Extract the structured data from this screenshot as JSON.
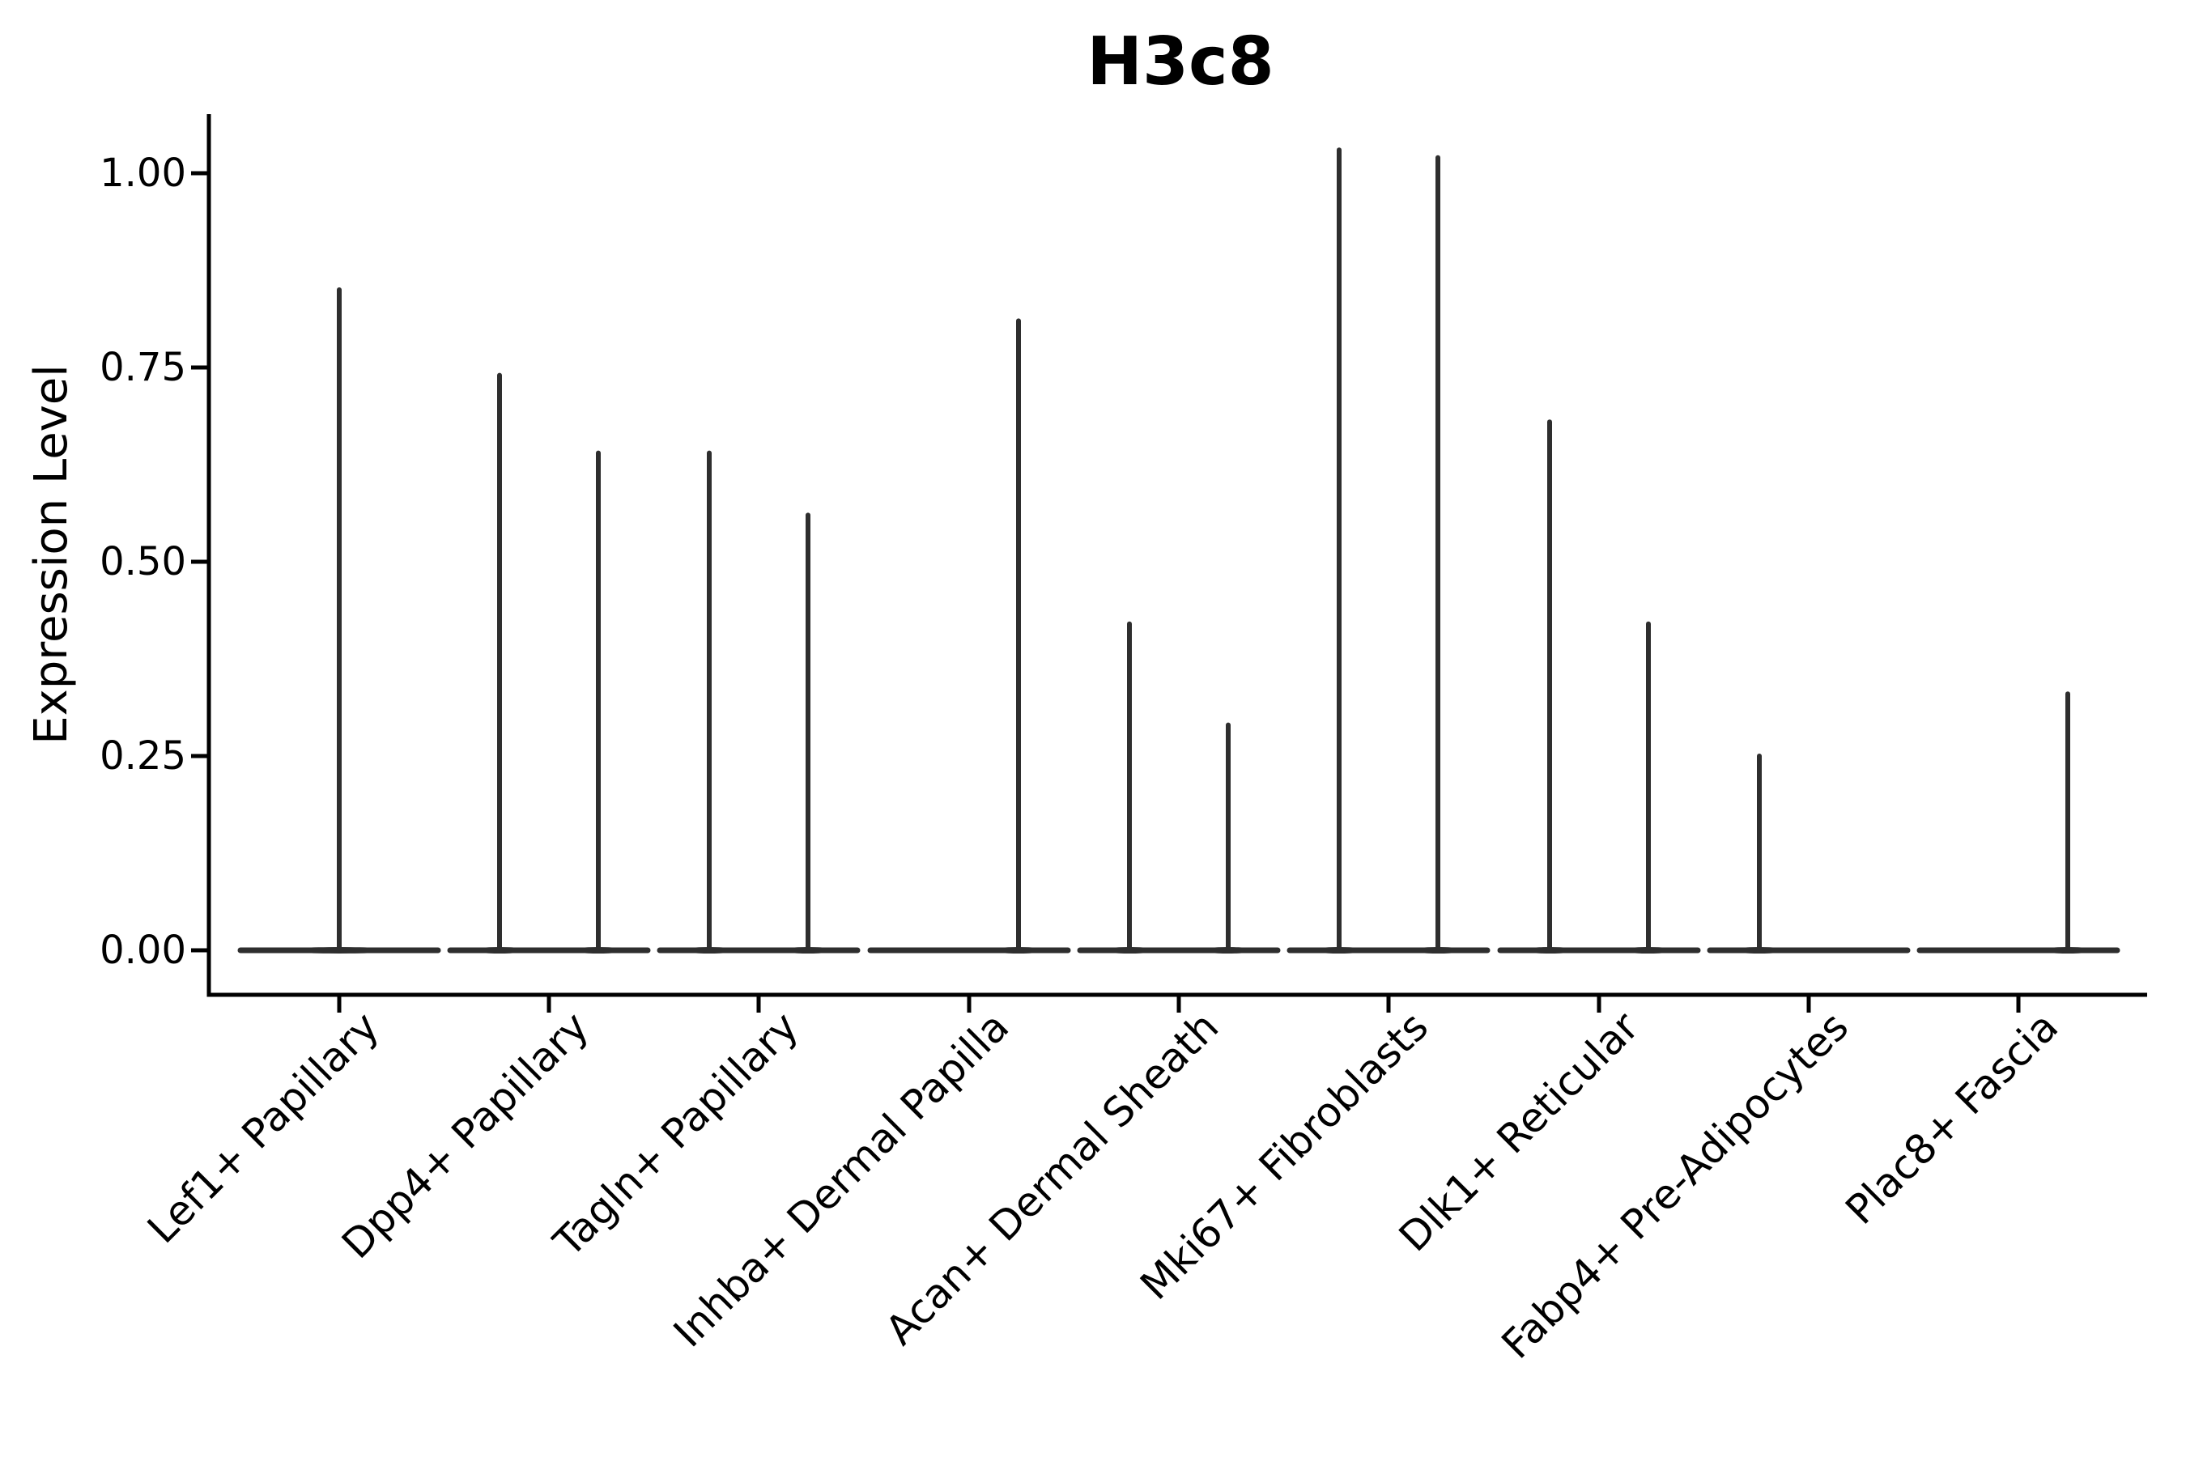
{
  "figure": {
    "background": "#ffffff",
    "ink_color": "#2e2e2e",
    "axis_color": "#000000",
    "text_color": "#000000"
  },
  "chart_data": {
    "type": "violin",
    "title": "H3c8",
    "xlabel": "",
    "ylabel": "Expression Level",
    "ylim": [
      0,
      1.08
    ],
    "grid": false,
    "legend": "none",
    "x_tick_label_rotation": 45,
    "y_tick_values": [
      0,
      0.25,
      0.5,
      0.75,
      1.0
    ],
    "y_tick_labels": [
      "0.00",
      "0.25",
      "0.50",
      "0.75",
      "1.00"
    ],
    "categories": [
      "Lef1+ Papillary",
      "Dpp4+ Papillary",
      "Tagln+ Papillary",
      "Inhba+ Dermal Papilla",
      "Acan+ Dermal Sheath",
      "Mki67+ Fibroblasts",
      "Dlk1+ Reticular",
      "Fabp4+ Pre-Adipocytes",
      "Plac8+ Fascia"
    ],
    "description": "Violin plot of H3c8 expression; most cells are at 0 (flat wide base at y=0), each violin shows a thin spike up to its maximum expression value. Categories 2-9 contain two side-by-side violins; category 1 has a single full-width violin.",
    "groups": [
      {
        "label": "Lef1+ Papillary",
        "violins": [
          {
            "position": "center",
            "max": 0.85
          }
        ]
      },
      {
        "label": "Dpp4+ Papillary",
        "violins": [
          {
            "position": "left",
            "max": 0.74
          },
          {
            "position": "right",
            "max": 0.64
          }
        ]
      },
      {
        "label": "Tagln+ Papillary",
        "violins": [
          {
            "position": "left",
            "max": 0.64
          },
          {
            "position": "right",
            "max": 0.56
          }
        ]
      },
      {
        "label": "Inhba+ Dermal Papilla",
        "violins": [
          {
            "position": "left",
            "max": 0
          },
          {
            "position": "right",
            "max": 0.81
          }
        ]
      },
      {
        "label": "Acan+ Dermal Sheath",
        "violins": [
          {
            "position": "left",
            "max": 0.42
          },
          {
            "position": "right",
            "max": 0.29
          }
        ]
      },
      {
        "label": "Mki67+ Fibroblasts",
        "violins": [
          {
            "position": "left",
            "max": 1.03
          },
          {
            "position": "right",
            "max": 1.02
          }
        ]
      },
      {
        "label": "Dlk1+ Reticular",
        "violins": [
          {
            "position": "left",
            "max": 0.68
          },
          {
            "position": "right",
            "max": 0.42
          }
        ]
      },
      {
        "label": "Fabp4+ Pre-Adipocytes",
        "violins": [
          {
            "position": "left",
            "max": 0.25
          },
          {
            "position": "right",
            "max": 0
          }
        ]
      },
      {
        "label": "Plac8+ Fascia",
        "violins": [
          {
            "position": "left",
            "max": 0
          },
          {
            "position": "right",
            "max": 0.33
          }
        ]
      }
    ]
  }
}
